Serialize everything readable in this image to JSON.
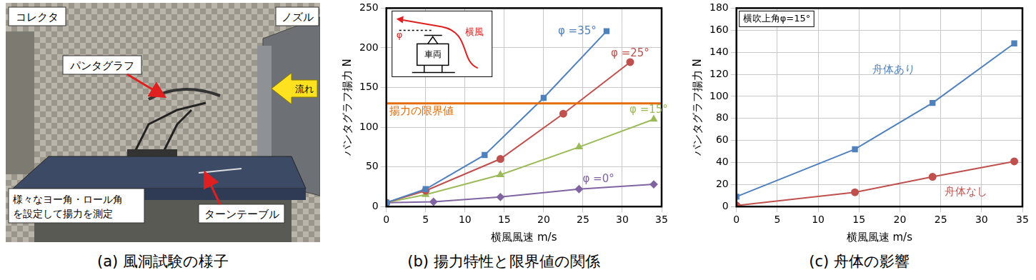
{
  "photo": {
    "caption": "(a) 風洞試験の様子",
    "labels": {
      "collector": "コレクタ",
      "nozzle": "ノズル",
      "pantograph": "パンタグラフ",
      "flow": "流れ",
      "note": [
        "様々なヨー角・ロール角",
        "を設定して揚力を測定"
      ],
      "turntable": "ターンテーブル"
    }
  },
  "chart_data": [
    {
      "type": "line",
      "title": "(b) 揚力特性と限界値の関係",
      "x_label": "横風風速 m/s",
      "y_label": "パンタグラフ揚力 N",
      "xlim": [
        0,
        35
      ],
      "xticks": [
        0,
        5,
        10,
        15,
        20,
        25,
        30,
        35
      ],
      "ylim": [
        0,
        250
      ],
      "yticks": [
        0,
        50,
        100,
        150,
        200,
        250
      ],
      "grid": true,
      "inset": {
        "vehicle": "車両",
        "wind": "横風",
        "angle": "φ"
      },
      "limit": {
        "value": 130,
        "label": "揚力の限界値",
        "color": "#e46c0a"
      },
      "series": [
        {
          "name": "φ =35°",
          "color": "#4f81bd",
          "marker": "square",
          "x": [
            0,
            5,
            12.5,
            20,
            28
          ],
          "values": [
            5,
            22,
            65,
            137,
            221
          ]
        },
        {
          "name": "φ =25°",
          "color": "#c0504d",
          "marker": "circle",
          "x": [
            0,
            5,
            14.5,
            22.5,
            31
          ],
          "values": [
            5,
            20,
            60,
            117,
            182
          ]
        },
        {
          "name": "φ =15°",
          "color": "#9bbb59",
          "marker": "triangle",
          "x": [
            0,
            5,
            14.5,
            24.5,
            34
          ],
          "values": [
            5,
            15,
            40,
            75,
            110
          ]
        },
        {
          "name": "φ =0°",
          "color": "#8064a2",
          "marker": "diamond",
          "x": [
            0,
            6,
            14.5,
            24.5,
            34
          ],
          "values": [
            5,
            6,
            12,
            22,
            28
          ]
        }
      ]
    },
    {
      "type": "line",
      "title": "(c) 舟体の影響",
      "x_label": "横風風速 m/s",
      "y_label": "パンタグラフ揚力 N",
      "xlim": [
        0,
        35
      ],
      "xticks": [
        0,
        5,
        10,
        15,
        20,
        25,
        30,
        35
      ],
      "ylim": [
        0,
        180
      ],
      "yticks": [
        0,
        20,
        40,
        60,
        80,
        100,
        120,
        140,
        160,
        180
      ],
      "grid": true,
      "note": "横吹上角φ=15°",
      "series": [
        {
          "name": "舟体あり",
          "color": "#4f81bd",
          "marker": "square",
          "x": [
            0,
            14.5,
            24,
            34
          ],
          "values": [
            9,
            52,
            94,
            148
          ]
        },
        {
          "name": "舟体なし",
          "color": "#c0504d",
          "marker": "circle",
          "x": [
            0,
            14.5,
            24,
            34
          ],
          "values": [
            1,
            13,
            27,
            41
          ]
        }
      ]
    }
  ]
}
